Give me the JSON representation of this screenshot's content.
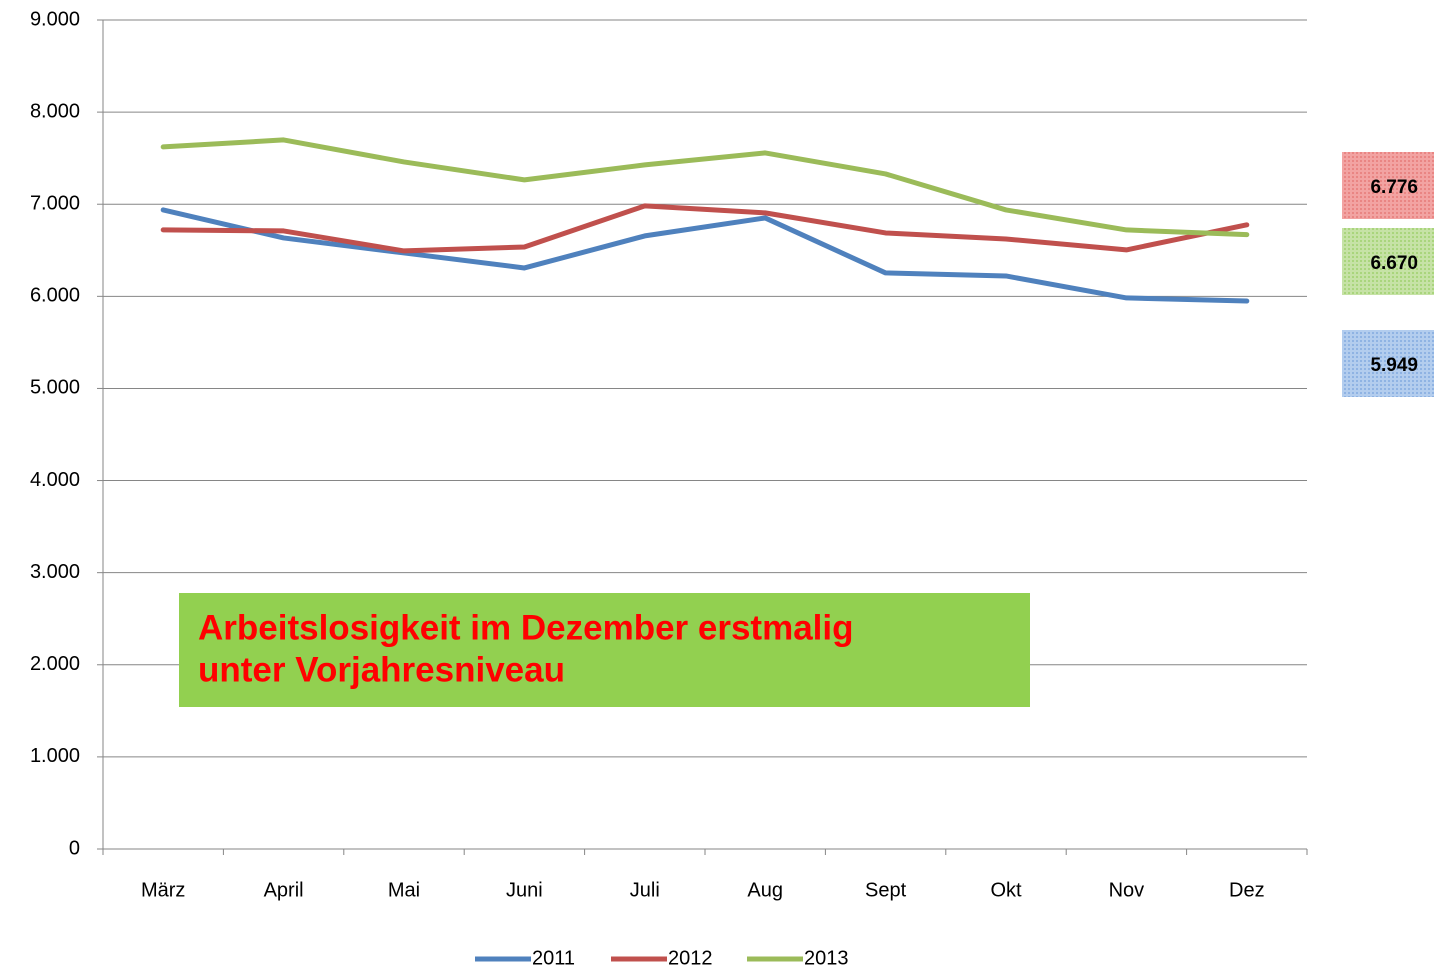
{
  "chart_data": {
    "type": "line",
    "categories": [
      "März",
      "April",
      "Mai",
      "Juni",
      "Juli",
      "Aug",
      "Sept",
      "Okt",
      "Nov",
      "Dez"
    ],
    "series": [
      {
        "name": "2011",
        "color": "#4f81bd",
        "values": [
          6938,
          6634,
          6471,
          6308,
          6656,
          6851,
          6254,
          6221,
          5983,
          5949
        ],
        "value_labels": [
          null,
          null,
          null,
          null,
          null,
          null,
          null,
          null,
          null,
          "5.949"
        ]
      },
      {
        "name": "2012",
        "color": "#c0504d",
        "values": [
          6721,
          6710,
          6493,
          6536,
          6982,
          6906,
          6688,
          6623,
          6504,
          6776
        ],
        "value_labels": [
          null,
          null,
          null,
          null,
          null,
          null,
          null,
          null,
          null,
          "6.776"
        ]
      },
      {
        "name": "2013",
        "color": "#9bbb59",
        "values": [
          7622,
          7698,
          7459,
          7264,
          7427,
          7557,
          7329,
          6938,
          6721,
          6670
        ],
        "value_labels": [
          null,
          null,
          null,
          null,
          null,
          null,
          null,
          null,
          null,
          "6.670"
        ]
      }
    ],
    "ylim": [
      0,
      9000
    ],
    "yticks": [
      0,
      {
        "value": 1000,
        "label": "1.000"
      },
      {
        "value": 2000,
        "label": "2.000"
      },
      {
        "value": 3000,
        "label": "3.000"
      },
      {
        "value": 4000,
        "label": "4.000"
      },
      {
        "value": 5000,
        "label": "5.000"
      },
      {
        "value": 6000,
        "label": "6.000"
      },
      {
        "value": 7000,
        "label": "7.000"
      },
      {
        "value": 8000,
        "label": "8.000"
      },
      {
        "value": 9000,
        "label": "9.000"
      }
    ],
    "grid": true,
    "legend": "bottom",
    "annotation": [
      "Arbeitslosigkeit im Dezember erstmalig",
      "unter Vorjahresniveau"
    ]
  }
}
